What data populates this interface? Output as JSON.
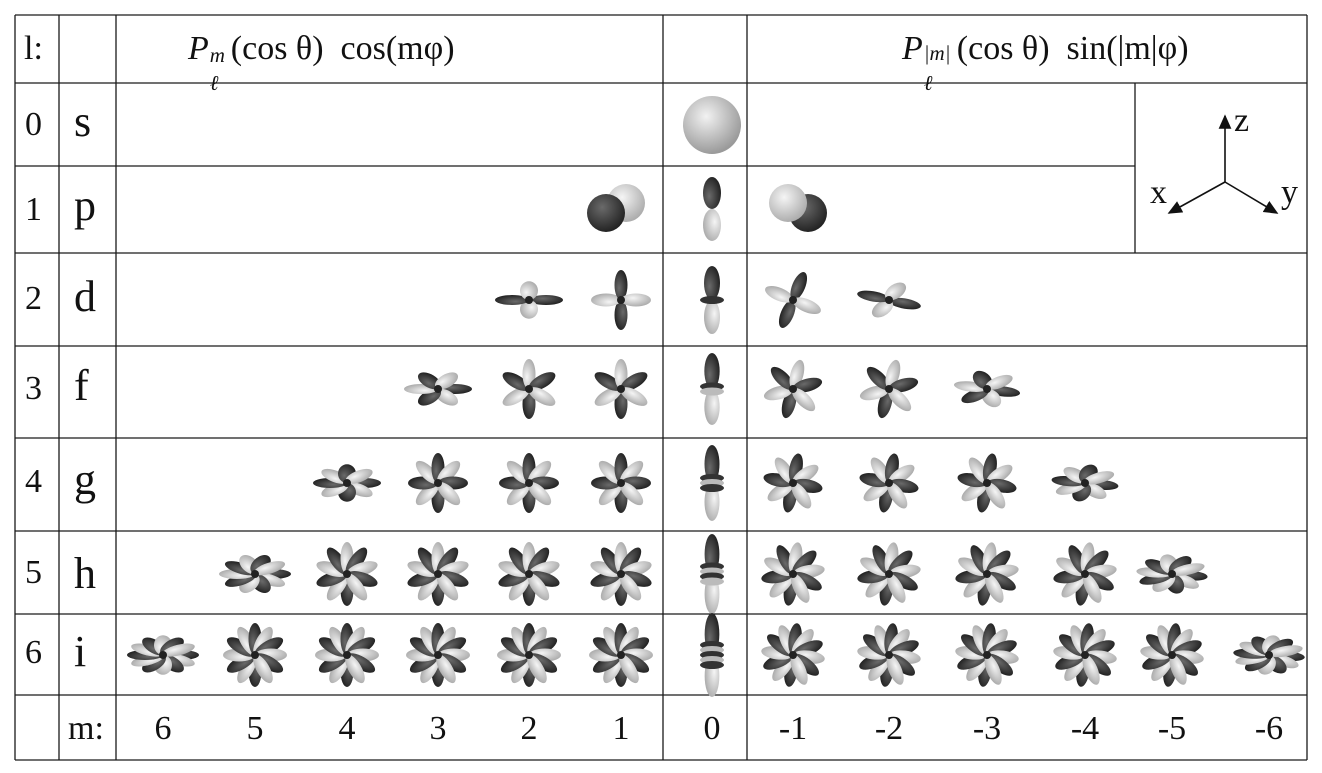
{
  "header": {
    "l_label": "l:",
    "cos_header": {
      "base": "P",
      "sup": "m",
      "sub": "ℓ",
      "rest": "(cos θ)  cos(mφ)"
    },
    "sin_header": {
      "base": "P",
      "sup": "|m|",
      "sub": "ℓ",
      "rest": "(cos θ)  sin(|m|φ)"
    }
  },
  "m_row": {
    "label": "m:",
    "values": [
      "6",
      "5",
      "4",
      "3",
      "2",
      "1",
      "0",
      "-1",
      "-2",
      "-3",
      "-4",
      "-5",
      "-6"
    ]
  },
  "rows": [
    {
      "l": "0",
      "letter": "s"
    },
    {
      "l": "1",
      "letter": "p"
    },
    {
      "l": "2",
      "letter": "d"
    },
    {
      "l": "3",
      "letter": "f"
    },
    {
      "l": "4",
      "letter": "g"
    },
    {
      "l": "5",
      "letter": "h"
    },
    {
      "l": "6",
      "letter": "i"
    }
  ],
  "axes": {
    "z": "z",
    "x": "x",
    "y": "y"
  },
  "colors": {
    "line": "#1a1a1a",
    "lobe_dark": "#2b2b2b",
    "lobe_light": "#e6e6e6"
  }
}
